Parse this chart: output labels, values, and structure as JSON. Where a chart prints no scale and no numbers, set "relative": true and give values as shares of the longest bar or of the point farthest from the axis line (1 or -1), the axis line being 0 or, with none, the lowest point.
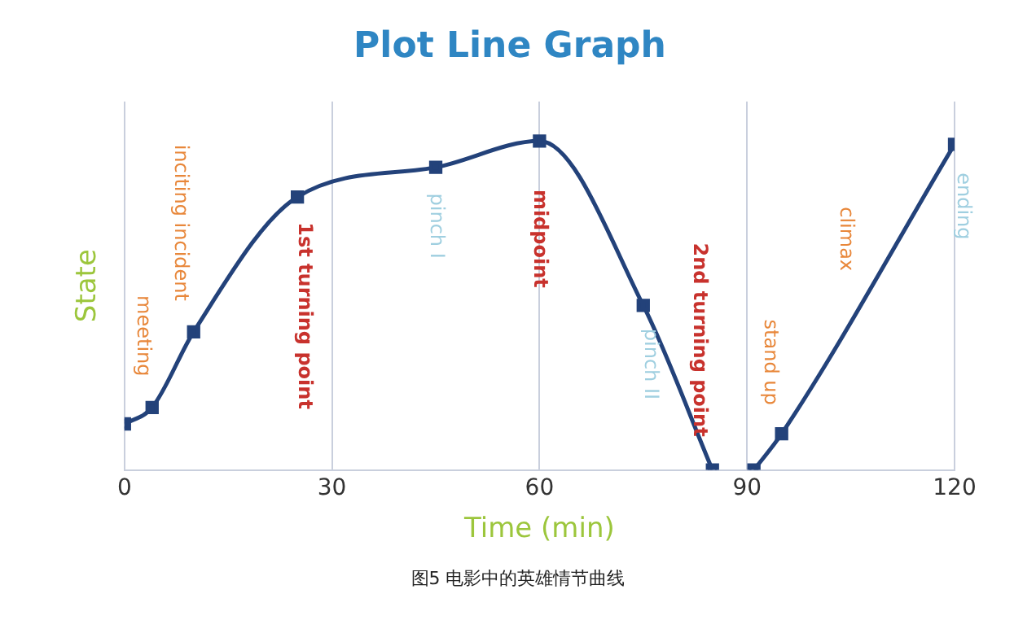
{
  "chart_data": {
    "type": "line",
    "title": "Plot Line Graph",
    "xlabel": "Time (min)",
    "ylabel": "State",
    "relative": true,
    "xlim": [
      0,
      120
    ],
    "xticks": [
      0,
      30,
      60,
      90,
      120
    ],
    "grid": "x",
    "marker": "square",
    "line_style": "solid",
    "series": [
      {
        "color": "#23427a",
        "x": [
          0,
          4,
          10,
          25,
          45,
          60,
          75,
          85
        ],
        "values": [
          0.14,
          0.19,
          0.42,
          0.83,
          0.92,
          1,
          0.5,
          0
        ]
      },
      {
        "color": "#23427a",
        "x": [
          91,
          95,
          120
        ],
        "values": [
          0,
          0.11,
          0.99
        ]
      }
    ],
    "annotations": [
      {
        "text": "meeting",
        "x": 4,
        "y": 0.19
      },
      {
        "text": "inciting incident",
        "x": 10,
        "y": 0.42
      },
      {
        "text": "1st turning point",
        "x": 25,
        "y": 0.83
      },
      {
        "text": "pinch I",
        "x": 45,
        "y": 0.92
      },
      {
        "text": "midpoint",
        "x": 60,
        "y": 1
      },
      {
        "text": "pinch II",
        "x": 75,
        "y": 0.5
      },
      {
        "text": "2nd turning point",
        "x": 85,
        "y": 0
      },
      {
        "text": "stand up",
        "x": 95,
        "y": 0.11
      },
      {
        "text": "climax",
        "x": 105,
        "y": 0.46
      },
      {
        "text": "ending",
        "x": 120,
        "y": 0.99
      },
      "图5 电影中的英雄情节曲线"
    ]
  }
}
